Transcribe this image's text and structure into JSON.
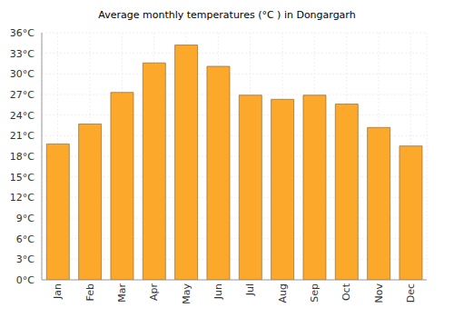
{
  "chart_data": {
    "type": "bar",
    "title": "Average monthly temperatures (°C ) in Dongargarh",
    "categories": [
      "Jan",
      "Feb",
      "Mar",
      "Apr",
      "May",
      "Jun",
      "Jul",
      "Aug",
      "Sep",
      "Oct",
      "Nov",
      "Dec"
    ],
    "values": [
      19.8,
      22.7,
      27.3,
      31.6,
      34.2,
      31.1,
      26.9,
      26.3,
      26.9,
      25.6,
      22.2,
      19.5
    ],
    "color": "#fca92b",
    "ylim": [
      0,
      36
    ],
    "yticks": [
      {
        "value": 0,
        "label": "0°C"
      },
      {
        "value": 3,
        "label": "3°C"
      },
      {
        "value": 6,
        "label": "6°C"
      },
      {
        "value": 9,
        "label": "9°C"
      },
      {
        "value": 12,
        "label": "12°C"
      },
      {
        "value": 15,
        "label": "15°C"
      },
      {
        "value": 18,
        "label": "18°C"
      },
      {
        "value": 21,
        "label": "21°C"
      },
      {
        "value": 24,
        "label": "24°C"
      },
      {
        "value": 27,
        "label": "27°C"
      },
      {
        "value": 30,
        "label": "30°C"
      },
      {
        "value": 33,
        "label": "33°C"
      },
      {
        "value": 36,
        "label": "36°C"
      }
    ],
    "grid": true
  }
}
